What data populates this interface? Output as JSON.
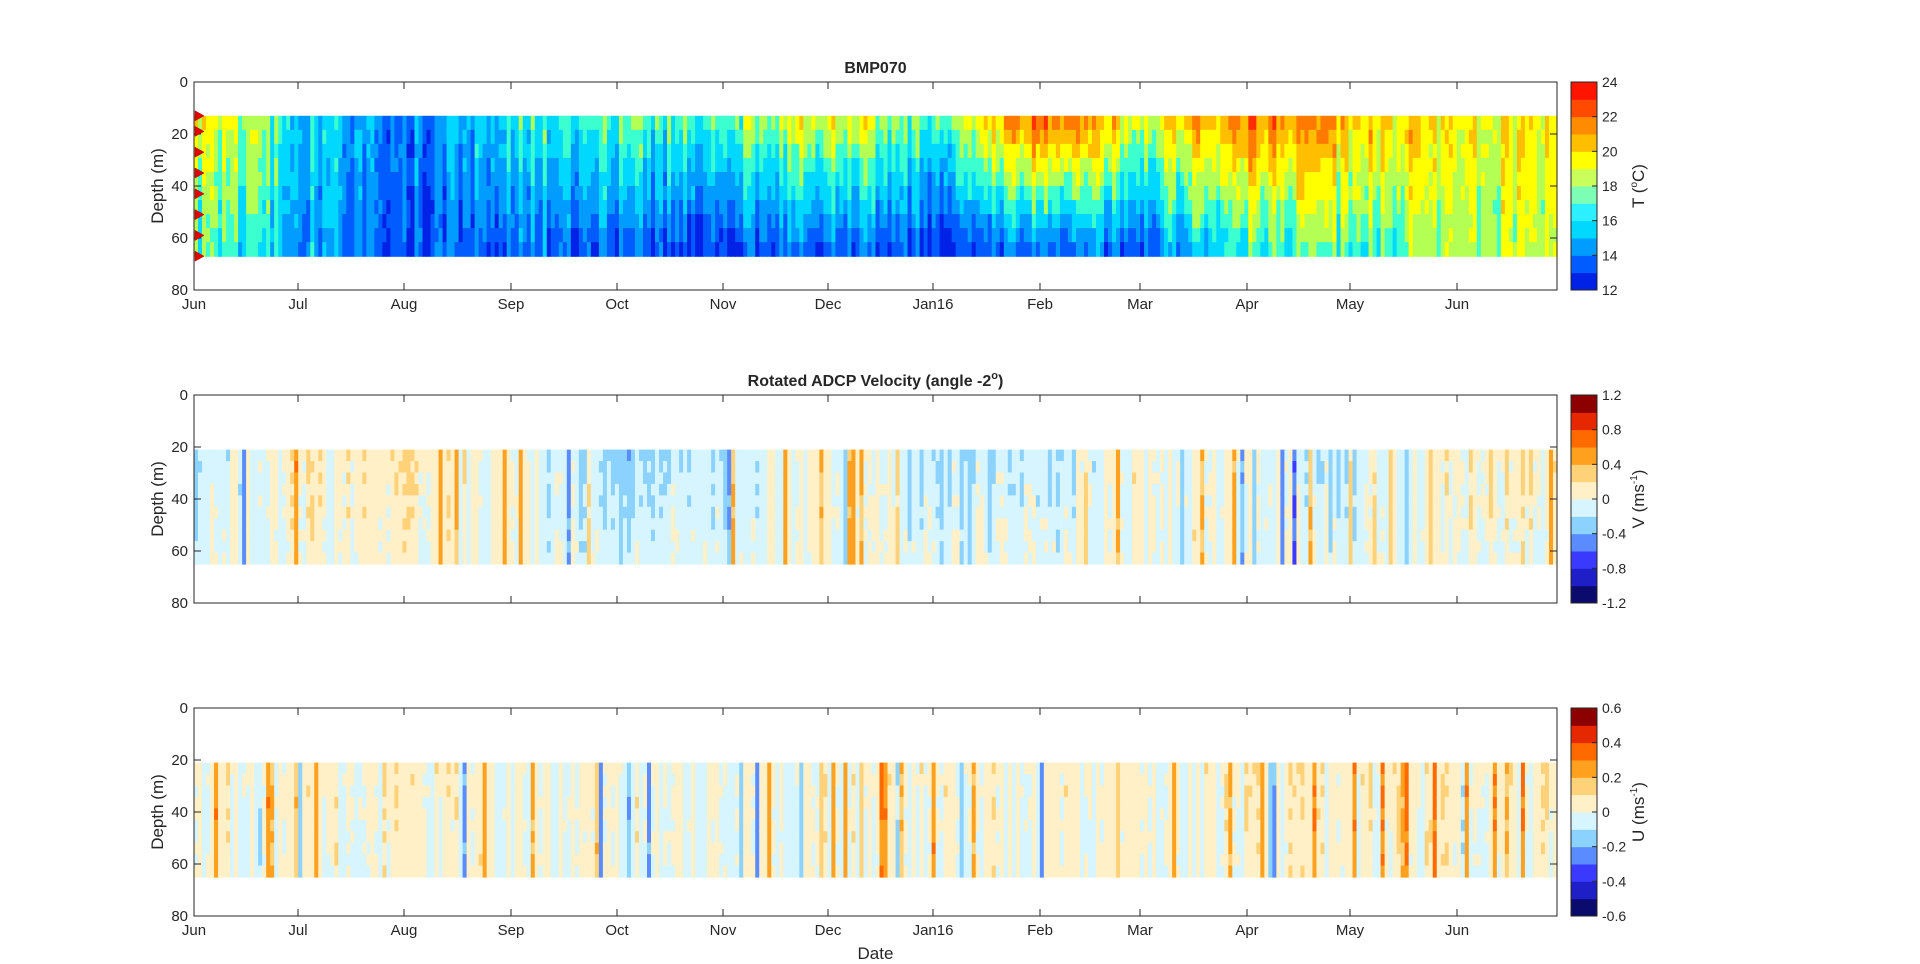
{
  "chart_data": [
    {
      "type": "heatmap",
      "title": "BMP070",
      "ylabel": "Depth (m)",
      "xlabel": "",
      "yticks": [
        "0",
        "20",
        "40",
        "60",
        "80"
      ],
      "xticks": [
        "Jun",
        "Jul",
        "Aug",
        "Sep",
        "Oct",
        "Nov",
        "Dec",
        "Jan16",
        "Feb",
        "Mar",
        "Apr",
        "May",
        "Jun"
      ],
      "ylim": [
        80,
        0
      ],
      "depth_range": [
        13,
        67
      ],
      "colorbar_label": "T (",
      "colorbar_unit": "C)",
      "colorbar_ticks": [
        "24",
        "22",
        "20",
        "18",
        "16",
        "14",
        "12"
      ],
      "clim": [
        12,
        24
      ],
      "instrument_depths": [
        13,
        19,
        27,
        35,
        43,
        51,
        59,
        67
      ],
      "monthly_profiles": [
        {
          "month": "Jun",
          "top": 19.5,
          "bottom": 17.5
        },
        {
          "month": "Jul",
          "top": 17.0,
          "bottom": 16.0
        },
        {
          "month": "Aug",
          "top": 14.8,
          "bottom": 14.2
        },
        {
          "month": "Sep",
          "top": 17.0,
          "bottom": 15.0
        },
        {
          "month": "Oct",
          "top": 17.5,
          "bottom": 14.5
        },
        {
          "month": "Nov",
          "top": 17.5,
          "bottom": 14.0
        },
        {
          "month": "Dec",
          "top": 19.5,
          "bottom": 15.0
        },
        {
          "month": "Jan16",
          "top": 17.5,
          "bottom": 14.0
        },
        {
          "month": "Feb",
          "top": 22.0,
          "bottom": 15.0
        },
        {
          "month": "Mar",
          "top": 19.0,
          "bottom": 14.5
        },
        {
          "month": "Apr",
          "top": 21.5,
          "bottom": 17.5
        },
        {
          "month": "May",
          "top": 20.5,
          "bottom": 17.5
        },
        {
          "month": "Jun",
          "top": 19.5,
          "bottom": 18.5
        }
      ]
    },
    {
      "type": "heatmap",
      "title": "Rotated ADCP Velocity (angle -2",
      "title_suffix": ")",
      "ylabel": "Depth (m)",
      "xlabel": "",
      "yticks": [
        "0",
        "20",
        "40",
        "60",
        "80"
      ],
      "ylim": [
        80,
        0
      ],
      "depth_range": [
        21,
        65
      ],
      "colorbar_label": "V (ms",
      "colorbar_exp": "-1",
      "colorbar_close": ")",
      "colorbar_ticks": [
        "1.2",
        "0.8",
        "0.4",
        "0",
        "-0.4",
        "-0.8",
        "-1.2"
      ],
      "clim": [
        -1.2,
        1.2
      ],
      "monthly_profiles": [
        {
          "month": "Jun",
          "mean": -0.2
        },
        {
          "month": "Jul",
          "mean": 0.1
        },
        {
          "month": "Aug",
          "mean": 0.15
        },
        {
          "month": "Sep",
          "mean": 0.0
        },
        {
          "month": "Oct",
          "mean": -0.25
        },
        {
          "month": "Nov",
          "mean": -0.15
        },
        {
          "month": "Dec",
          "mean": 0.05
        },
        {
          "month": "Jan16",
          "mean": -0.2
        },
        {
          "month": "Feb",
          "mean": -0.15
        },
        {
          "month": "Mar",
          "mean": 0.05
        },
        {
          "month": "Apr",
          "mean": 0.0
        },
        {
          "month": "May",
          "mean": -0.2
        },
        {
          "month": "Jun",
          "mean": 0.1
        }
      ]
    },
    {
      "type": "heatmap",
      "title": "",
      "ylabel": "Depth (m)",
      "xlabel": "Date",
      "yticks": [
        "0",
        "20",
        "40",
        "60",
        "80"
      ],
      "xticks": [
        "Jun",
        "Jul",
        "Aug",
        "Sep",
        "Oct",
        "Nov",
        "Dec",
        "Jan16",
        "Feb",
        "Mar",
        "Apr",
        "May",
        "Jun"
      ],
      "ylim": [
        80,
        0
      ],
      "depth_range": [
        21,
        65
      ],
      "colorbar_label": "U (ms",
      "colorbar_exp": "-1",
      "colorbar_close": ")",
      "colorbar_ticks": [
        "0.6",
        "0.4",
        "0.2",
        "0",
        "-0.2",
        "-0.4",
        "-0.6"
      ],
      "clim": [
        -0.6,
        0.6
      ],
      "monthly_profiles": [
        {
          "month": "Jun",
          "mean": 0.02
        },
        {
          "month": "Jul",
          "mean": 0.03
        },
        {
          "month": "Aug",
          "mean": 0.05
        },
        {
          "month": "Sep",
          "mean": 0.0
        },
        {
          "month": "Oct",
          "mean": 0.02
        },
        {
          "month": "Nov",
          "mean": 0.0
        },
        {
          "month": "Dec",
          "mean": 0.02
        },
        {
          "month": "Jan16",
          "mean": 0.03
        },
        {
          "month": "Feb",
          "mean": 0.02
        },
        {
          "month": "Mar",
          "mean": 0.03
        },
        {
          "month": "Apr",
          "mean": 0.04
        },
        {
          "month": "May",
          "mean": 0.04
        },
        {
          "month": "Jun",
          "mean": 0.05
        }
      ]
    }
  ]
}
